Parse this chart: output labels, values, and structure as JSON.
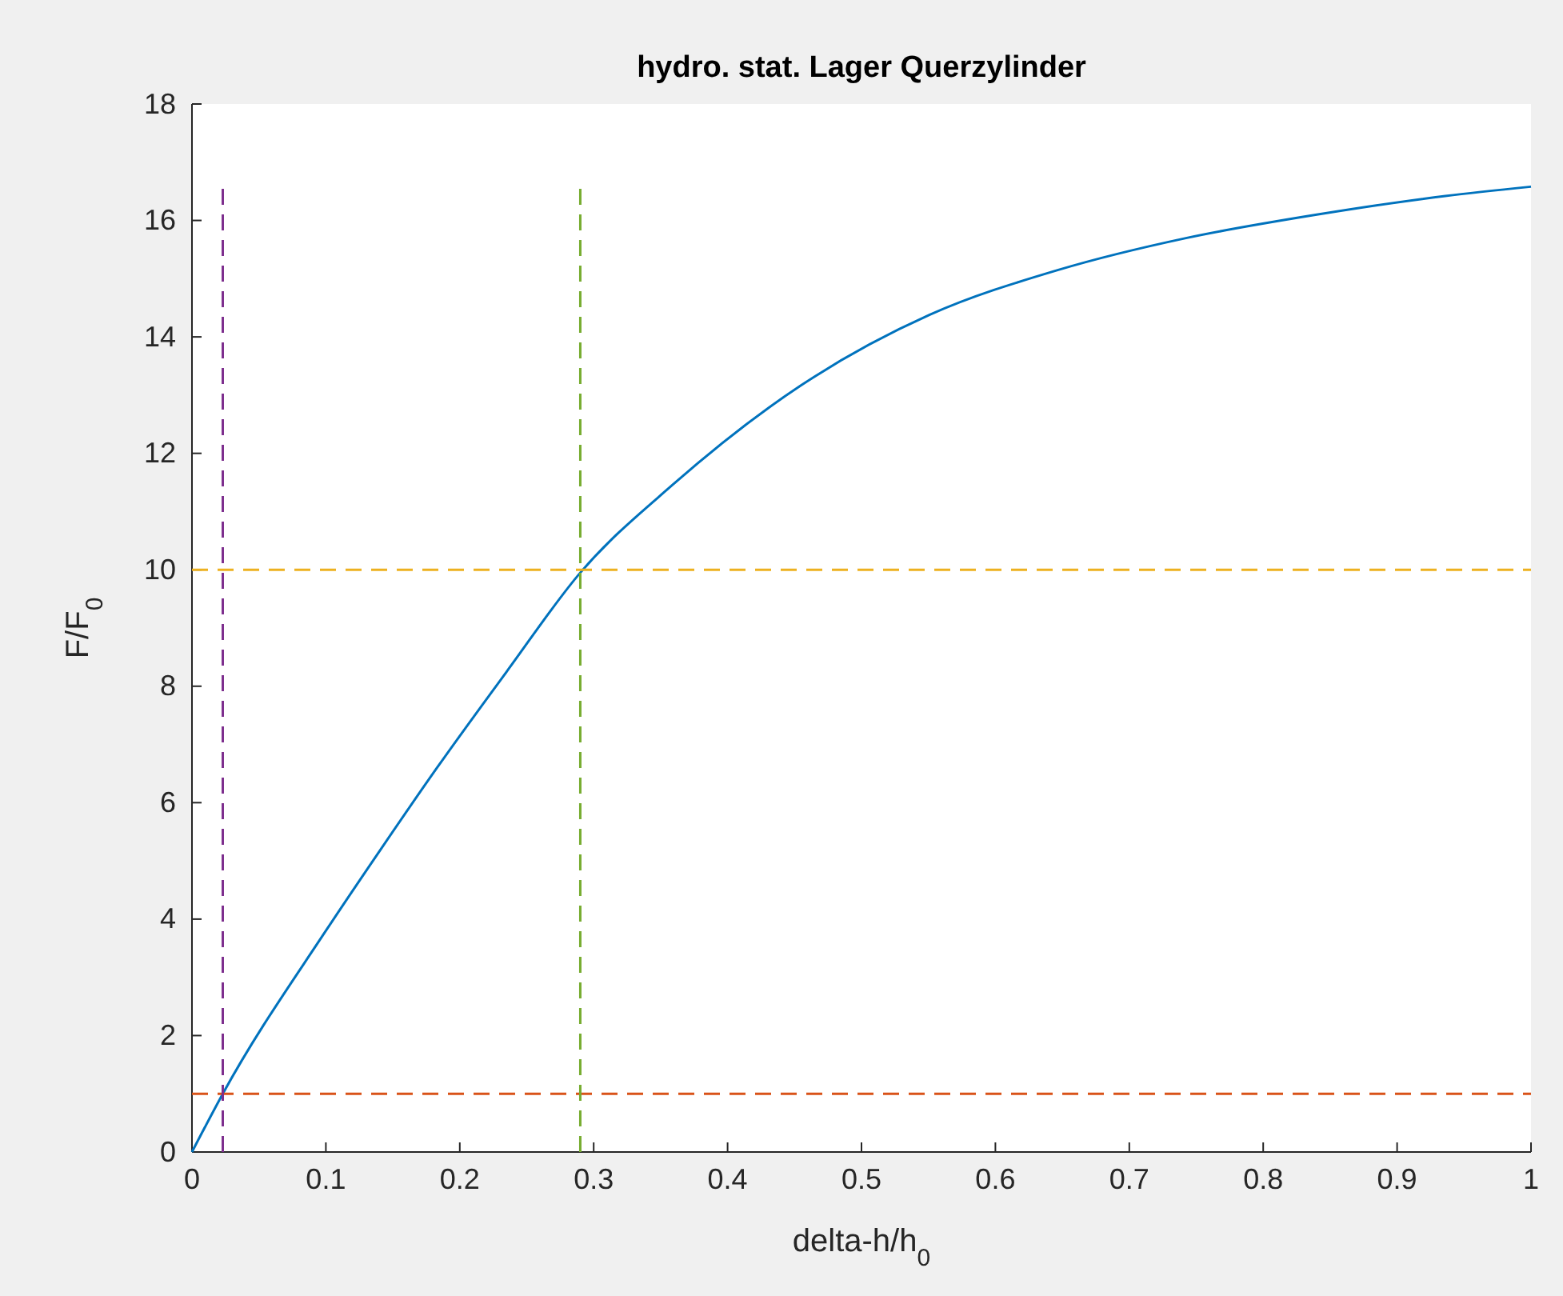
{
  "chart_data": {
    "type": "line",
    "title": "hydro. stat. Lager Querzylinder",
    "xlabel": "delta-h/h$_{0}$",
    "ylabel": "F/F$_{0}$",
    "xlim": [
      0,
      1
    ],
    "xticks": [
      0,
      0.1,
      0.2,
      0.3,
      0.4,
      0.5,
      0.6,
      0.7,
      0.8,
      0.9,
      1
    ],
    "ylim": [
      0,
      18
    ],
    "yticks": [
      0,
      2,
      4,
      6,
      8,
      10,
      12,
      14,
      16,
      18
    ],
    "series": [
      {
        "color": "#0072bd",
        "line_style": "solid",
        "x": [
          0,
          0.023,
          0.1,
          0.141,
          0.183,
          0.235,
          0.29,
          0.359,
          0.455,
          0.551,
          0.647,
          0.743,
          0.84,
          0.936,
          1
        ],
        "values": [
          0,
          1.0,
          3.8,
          5.2,
          6.6,
          8.25,
          9.95,
          11.46,
          13.17,
          14.38,
          15.15,
          15.7,
          16.1,
          16.42,
          16.58
        ]
      },
      {
        "color": "#d95319",
        "line_style": "dashed",
        "x": [
          0,
          1
        ],
        "values": [
          1,
          1
        ]
      },
      {
        "color": "#edb120",
        "line_style": "dashed",
        "x": [
          0,
          1
        ],
        "values": [
          10,
          10
        ]
      },
      {
        "color": "#7e2f8e",
        "line_style": "dashed",
        "x": [
          0.023,
          0.023
        ],
        "values": [
          0,
          16.58
        ]
      },
      {
        "color": "#77ac30",
        "line_style": "dashed",
        "x": [
          0.29,
          0.29
        ],
        "values": [
          0,
          16.58
        ]
      }
    ]
  }
}
